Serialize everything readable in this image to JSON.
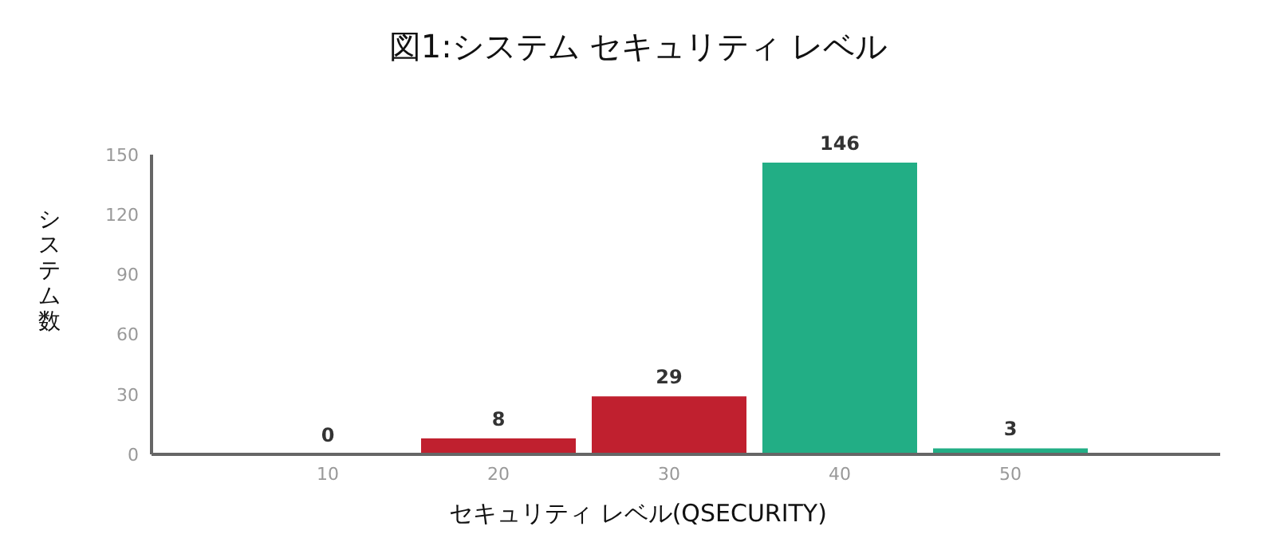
{
  "chart_data": {
    "type": "bar",
    "title": "図1:システム セキュリティ レベル",
    "xlabel": "セキュリティ レベル(QSECURITY)",
    "ylabel": "システム数",
    "categories": [
      "10",
      "20",
      "30",
      "40",
      "50"
    ],
    "values": [
      0,
      8,
      29,
      146,
      3
    ],
    "colors": [
      "#c0202f",
      "#c0202f",
      "#c0202f",
      "#22ae85",
      "#22ae85"
    ],
    "ylim": [
      0,
      150
    ],
    "yticks": [
      0,
      30,
      60,
      90,
      120,
      150
    ],
    "grid": false,
    "data_labels": true
  }
}
